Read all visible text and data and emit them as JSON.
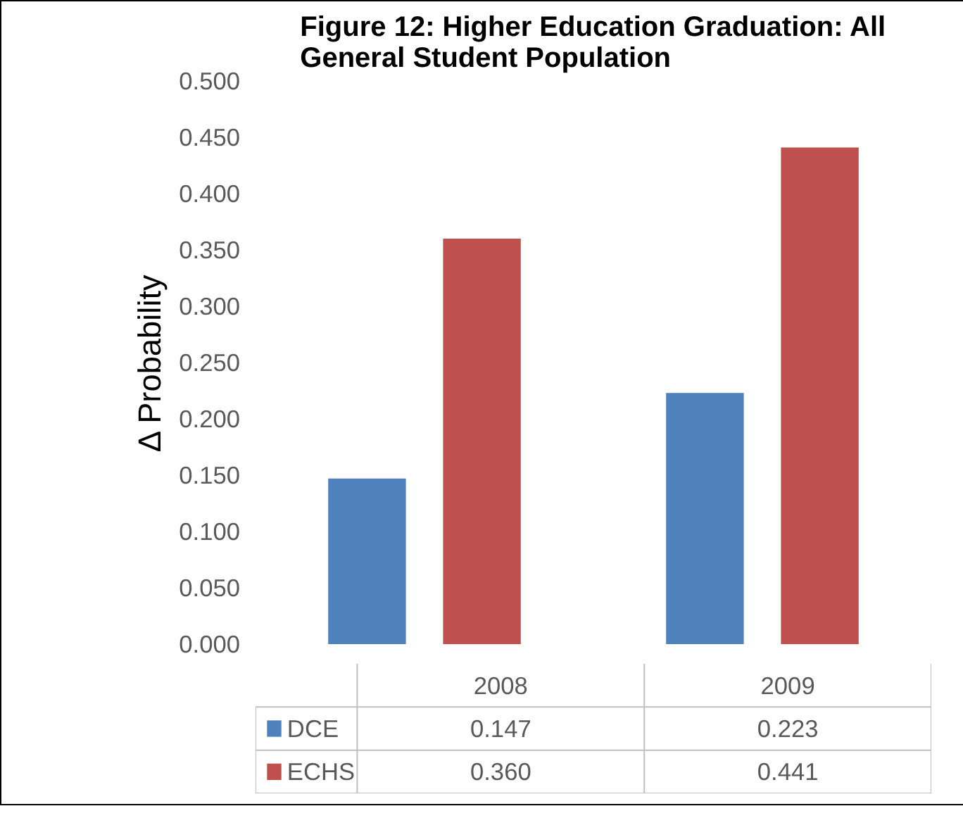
{
  "chart_data": {
    "type": "bar",
    "title": "Figure 12: Higher Education Graduation: All General Student Population",
    "ylabel": "Δ Probability",
    "categories": [
      "2008",
      "2009"
    ],
    "series": [
      {
        "name": "DCE",
        "color": "#4f81bd",
        "values": [
          0.147,
          0.223
        ],
        "value_labels": [
          "0.147",
          "0.223"
        ]
      },
      {
        "name": "ECHS",
        "color": "#c0504d",
        "values": [
          0.36,
          0.441
        ],
        "value_labels": [
          "0.360",
          "0.441"
        ]
      }
    ],
    "ylim": [
      0,
      0.5
    ],
    "yticks": [
      {
        "value": 0,
        "label": "0.000"
      },
      {
        "value": 0.05,
        "label": "0.050"
      },
      {
        "value": 0.1,
        "label": "0.100"
      },
      {
        "value": 0.15,
        "label": "0.150"
      },
      {
        "value": 0.2,
        "label": "0.200"
      },
      {
        "value": 0.25,
        "label": "0.250"
      },
      {
        "value": 0.3,
        "label": "0.300"
      },
      {
        "value": 0.35,
        "label": "0.350"
      },
      {
        "value": 0.4,
        "label": "0.400"
      },
      {
        "value": 0.45,
        "label": "0.450"
      },
      {
        "value": 0.5,
        "label": "0.500"
      }
    ],
    "grid": false,
    "legend": "bottom"
  }
}
